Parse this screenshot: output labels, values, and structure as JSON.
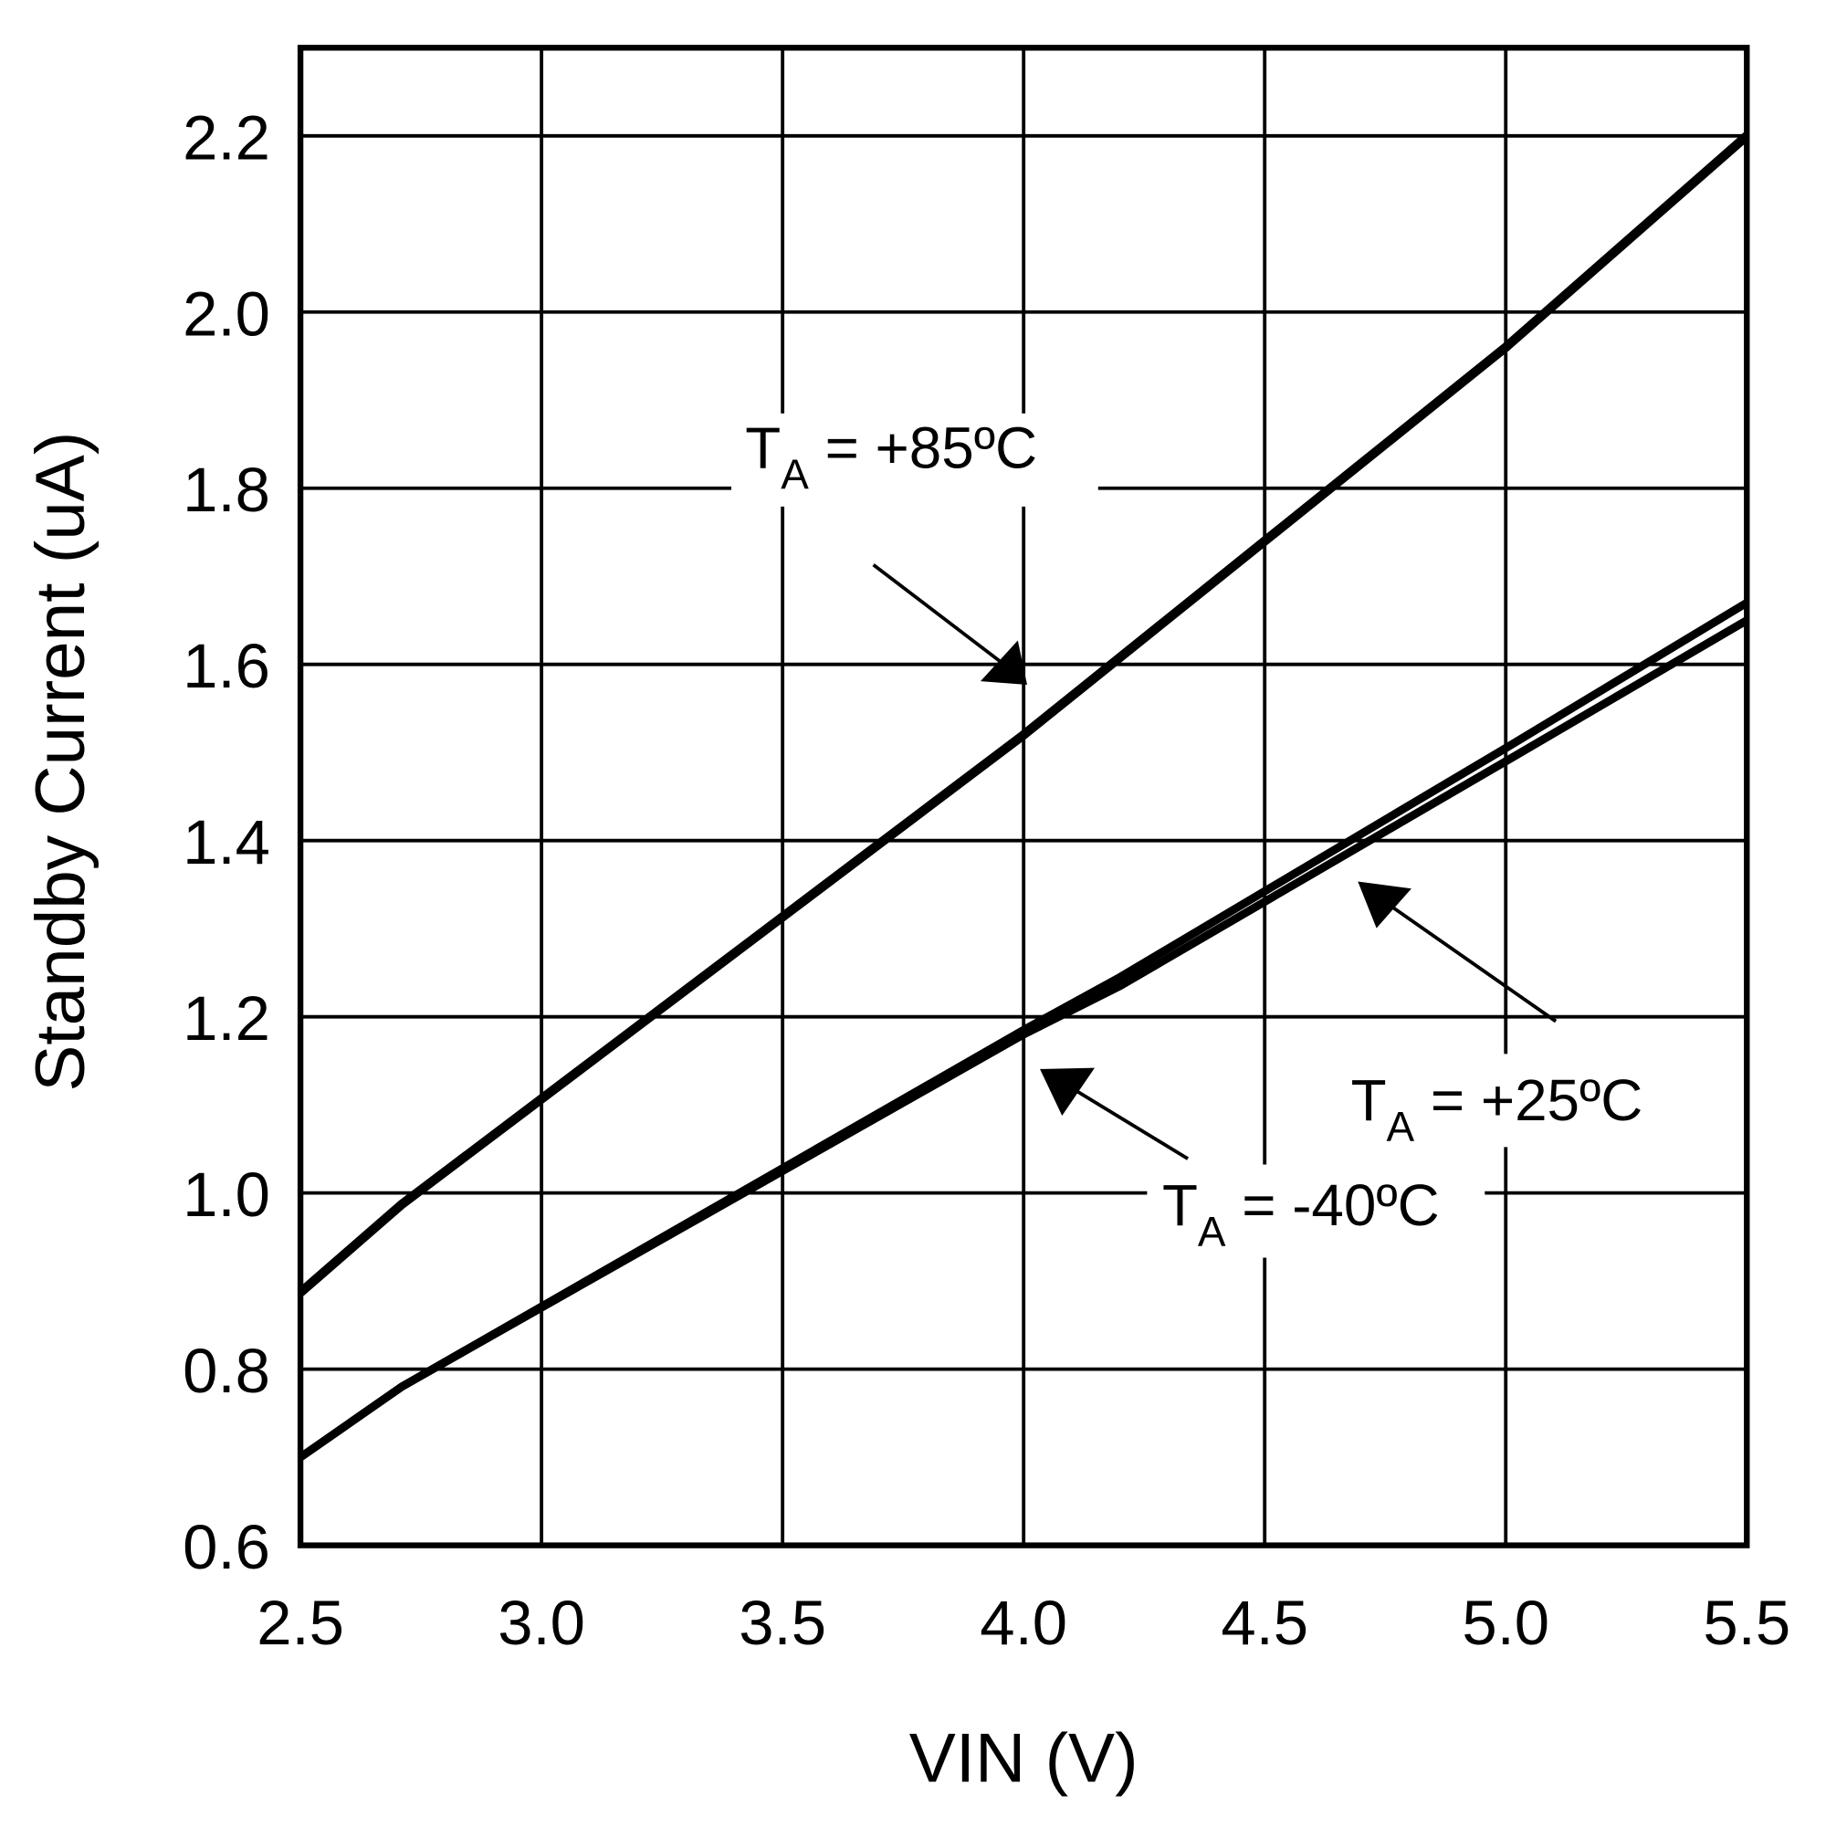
{
  "chart_data": {
    "type": "line",
    "title": "",
    "xlabel": "VIN (V)",
    "ylabel": "Standby Current (uA)",
    "xlim": [
      2.5,
      5.5
    ],
    "ylim": [
      0.6,
      2.3
    ],
    "xticks": [
      "2.5",
      "3.0",
      "3.5",
      "4.0",
      "4.5",
      "5.0",
      "5.5"
    ],
    "yticks": [
      "0.6",
      "0.8",
      "1.0",
      "1.2",
      "1.4",
      "1.6",
      "1.8",
      "2.0",
      "2.2"
    ],
    "grid": true,
    "series": [
      {
        "name": "TA = +85°C",
        "x": [
          2.5,
          2.71,
          4.0,
          5.0,
          5.5
        ],
        "y": [
          0.887,
          0.987,
          1.52,
          1.96,
          2.2
        ]
      },
      {
        "name": "TA = +25°C",
        "x": [
          2.5,
          2.71,
          4.0,
          4.2,
          5.0,
          5.5
        ],
        "y": [
          0.7,
          0.78,
          1.185,
          1.245,
          1.505,
          1.67
        ]
      },
      {
        "name": "TA = -40°C",
        "x": [
          2.5,
          2.71,
          4.0,
          4.2,
          5.0,
          5.5
        ],
        "y": [
          0.7,
          0.78,
          1.18,
          1.235,
          1.49,
          1.65
        ]
      }
    ],
    "annotations": [
      {
        "prefix": "T",
        "sub": "A",
        "text": " = +85ºC"
      },
      {
        "prefix": "T",
        "sub": "A",
        "text": " = +25ºC"
      },
      {
        "prefix": "T",
        "sub": "A",
        "text": " = -40ºC"
      }
    ],
    "colors": {
      "line": "#000000",
      "background": "#ffffff"
    }
  }
}
